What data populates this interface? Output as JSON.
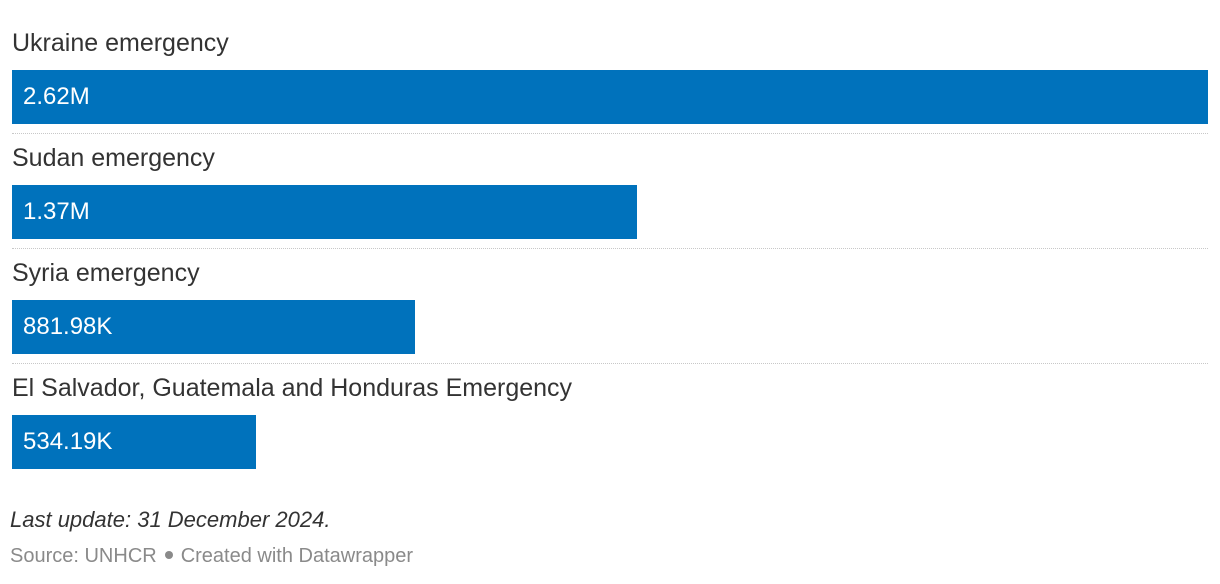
{
  "chart_data": {
    "type": "bar",
    "orientation": "horizontal",
    "categories": [
      "Ukraine emergency",
      "Sudan emergency",
      "Syria emergency",
      "El Salvador, Guatemala and Honduras Emergency"
    ],
    "values": [
      2620000,
      1370000,
      881980,
      534190
    ],
    "value_labels": [
      "2.62M",
      "1.37M",
      "881.98K",
      "534.19K"
    ],
    "xlim": [
      0,
      2620000
    ],
    "grid": false,
    "bar_color": "#0072bc"
  },
  "note": "Last update: 31 December 2024.",
  "footer": {
    "source": "Source: UNHCR",
    "credit": "Created with Datawrapper"
  }
}
